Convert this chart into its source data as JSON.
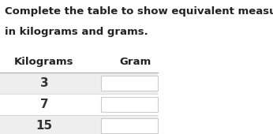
{
  "title_line1": "Complete the table to show equivalent measurements",
  "title_line2": "in kilograms and grams.",
  "col1_header": "Kilograms",
  "col2_header": "Gram",
  "rows": [
    "3",
    "7",
    "15"
  ],
  "row_bg_odd": "#eeeeee",
  "row_bg_even": "#ffffff",
  "header_bg": "#ffffff",
  "text_color": "#333333",
  "title_color": "#222222",
  "header_color": "#222222",
  "input_box_color": "#ffffff",
  "input_box_border": "#cccccc",
  "title_fontsize": 9.5,
  "header_fontsize": 9.5,
  "cell_fontsize": 11,
  "fig_width": 3.46,
  "fig_height": 1.7
}
